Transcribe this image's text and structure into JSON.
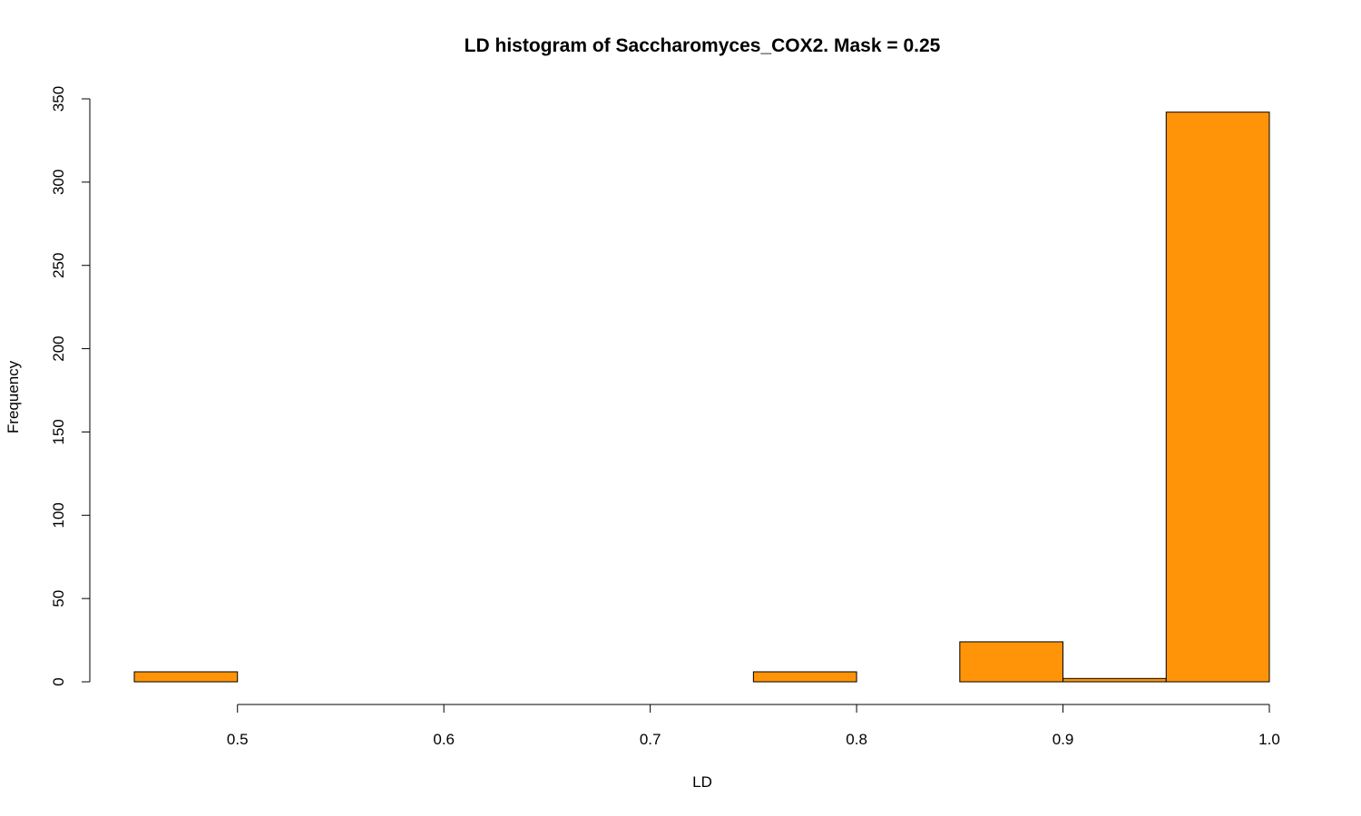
{
  "chart_data": {
    "type": "bar",
    "title": "LD histogram of Saccharomyces_COX2. Mask = 0.25",
    "xlabel": "LD",
    "ylabel": "Frequency",
    "bar_color": "#FF9408",
    "bins": [
      {
        "start": 0.45,
        "end": 0.5,
        "count": 6
      },
      {
        "start": 0.5,
        "end": 0.55,
        "count": 0
      },
      {
        "start": 0.55,
        "end": 0.6,
        "count": 0
      },
      {
        "start": 0.6,
        "end": 0.65,
        "count": 0
      },
      {
        "start": 0.65,
        "end": 0.7,
        "count": 0
      },
      {
        "start": 0.7,
        "end": 0.75,
        "count": 0
      },
      {
        "start": 0.75,
        "end": 0.8,
        "count": 6
      },
      {
        "start": 0.8,
        "end": 0.85,
        "count": 0
      },
      {
        "start": 0.85,
        "end": 0.9,
        "count": 24
      },
      {
        "start": 0.9,
        "end": 0.95,
        "count": 2
      },
      {
        "start": 0.95,
        "end": 1.0,
        "count": 342
      }
    ],
    "xlim": [
      0.45,
      1.0
    ],
    "ylim": [
      0,
      350
    ],
    "xticks": [
      0.5,
      0.6,
      0.7,
      0.8,
      0.9,
      1.0
    ],
    "xtick_labels": [
      "0.5",
      "0.6",
      "0.7",
      "0.8",
      "0.9",
      "1.0"
    ],
    "yticks": [
      0,
      50,
      100,
      150,
      200,
      250,
      300,
      350
    ],
    "ytick_labels": [
      "0",
      "50",
      "100",
      "150",
      "200",
      "250",
      "300",
      "350"
    ],
    "grid": false,
    "legend": "none"
  }
}
